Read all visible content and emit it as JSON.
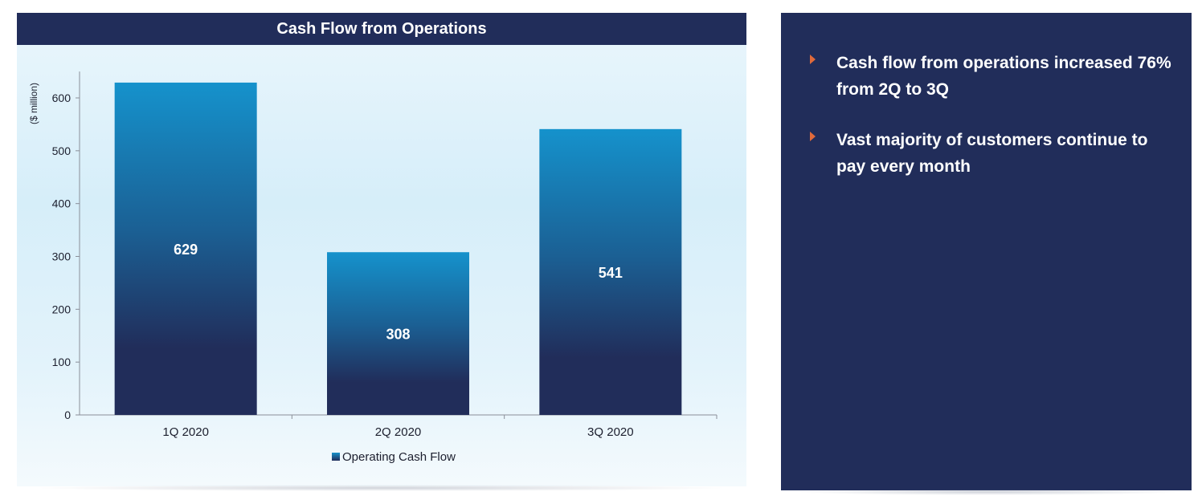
{
  "chart_data": {
    "type": "bar",
    "title": "Cash Flow from Operations",
    "ylabel": "($ million)",
    "xlabel": "",
    "categories": [
      "1Q 2020",
      "2Q 2020",
      "3Q 2020"
    ],
    "series": [
      {
        "name": "Operating Cash Flow",
        "values": [
          629,
          308,
          541
        ]
      }
    ],
    "data_labels": [
      "629",
      "308",
      "541"
    ],
    "ylim": [
      0,
      650
    ],
    "yticks": [
      0,
      100,
      200,
      300,
      400,
      500,
      600
    ],
    "grid": false,
    "legend": "bottom-center",
    "colors": {
      "bar_top": "#1592cc",
      "bar_bottom": "#212d5a",
      "axis": "#8a8f99",
      "text": "#1c1f2e"
    }
  },
  "commentary": {
    "bullets": [
      "Cash flow from operations increased 76% from 2Q to 3Q",
      "Vast majority of customers continue to pay every month"
    ],
    "colors": {
      "panel": "#212d5a",
      "arrow": "#e06a3b",
      "text": "#ffffff"
    }
  }
}
